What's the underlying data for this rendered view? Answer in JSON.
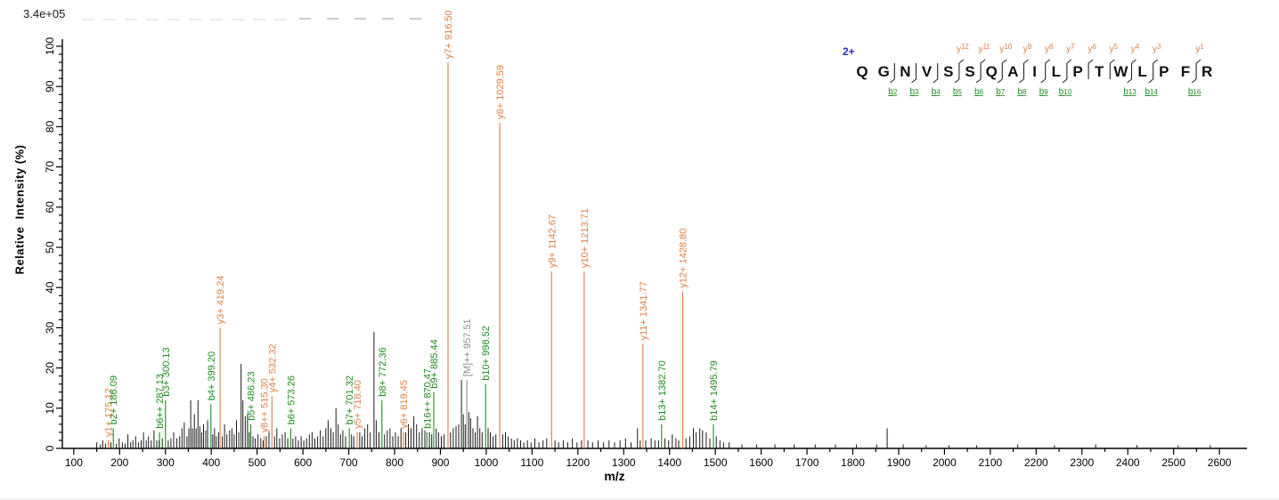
{
  "scale_label": "3.4e+05",
  "axes": {
    "y_title": "Relative  Intensity (%)",
    "x_title": "m/z",
    "x_tick_start": 100,
    "x_tick_end": 2600,
    "x_tick_major_step": 100,
    "x_tick_minor_step": 50,
    "y_tick_major_step": 10,
    "y_tick_minor_step": 2,
    "y_max": 100
  },
  "colors": {
    "y_ion": "#DD8045",
    "b_ion": "#1F8B1F",
    "precursor": "#8C8C8C",
    "noise": "#1a1a1a",
    "axis": "#000000",
    "charge_blue": "#2929C8",
    "artifact_dash": "#c6cbd4",
    "artifact_faint": "#e9eaf0"
  },
  "precursor_charge_label": "2+",
  "peptide": {
    "sequence": [
      "Q",
      "G",
      "N",
      "V",
      "S",
      "S",
      "Q",
      "A",
      "I",
      "L",
      "P",
      "T",
      "W",
      "L",
      "P",
      "F",
      "R"
    ],
    "separator_gaps": [
      2,
      3,
      4,
      5,
      6,
      7,
      8,
      9,
      10,
      11,
      12,
      13,
      14,
      16
    ],
    "y_ions": [
      {
        "gap": 5,
        "name": "y",
        "num": "12"
      },
      {
        "gap": 6,
        "name": "y",
        "num": "11"
      },
      {
        "gap": 7,
        "name": "y",
        "num": "10"
      },
      {
        "gap": 8,
        "name": "y",
        "num": "9"
      },
      {
        "gap": 9,
        "name": "y",
        "num": "8"
      },
      {
        "gap": 10,
        "name": "y",
        "num": "7"
      },
      {
        "gap": 11,
        "name": "y",
        "num": "6"
      },
      {
        "gap": 12,
        "name": "y",
        "num": "5"
      },
      {
        "gap": 13,
        "name": "y",
        "num": "4"
      },
      {
        "gap": 14,
        "name": "y",
        "num": "3"
      },
      {
        "gap": 16,
        "name": "y",
        "num": "1"
      }
    ],
    "b_ions": [
      {
        "gap": 2,
        "name": "b",
        "num": "2"
      },
      {
        "gap": 3,
        "name": "b",
        "num": "3"
      },
      {
        "gap": 4,
        "name": "b",
        "num": "4"
      },
      {
        "gap": 5,
        "name": "b",
        "num": "5"
      },
      {
        "gap": 6,
        "name": "b",
        "num": "6"
      },
      {
        "gap": 7,
        "name": "b",
        "num": "7"
      },
      {
        "gap": 8,
        "name": "b",
        "num": "8"
      },
      {
        "gap": 9,
        "name": "b",
        "num": "9"
      },
      {
        "gap": 10,
        "name": "b",
        "num": "10"
      },
      {
        "gap": 13,
        "name": "b",
        "num": "13"
      },
      {
        "gap": 14,
        "name": "b",
        "num": "14"
      },
      {
        "gap": 16,
        "name": "b",
        "num": "16"
      }
    ]
  },
  "chart_data": {
    "type": "bar",
    "subtype": "mass-spectrum",
    "title": "",
    "xlabel": "m/z",
    "ylabel": "Relative  Intensity (%)",
    "xlim": [
      75,
      2660
    ],
    "ylim": [
      0,
      100
    ],
    "absolute_intensity_scale": "3.4e+05",
    "labeled_peaks": [
      {
        "mz": 175.12,
        "intensity": 2,
        "label": "y1+ 175.12",
        "series": "y"
      },
      {
        "mz": 186.09,
        "intensity": 5,
        "label": "b2+ 186.09",
        "series": "b"
      },
      {
        "mz": 287.13,
        "intensity": 4,
        "label": "b6++ 287.13",
        "series": "b"
      },
      {
        "mz": 300.13,
        "intensity": 12,
        "label": "b3+ 300.13",
        "series": "b"
      },
      {
        "mz": 399.2,
        "intensity": 11,
        "label": "b4+ 399.20",
        "series": "b"
      },
      {
        "mz": 419.24,
        "intensity": 30,
        "label": "y3+ 419.24",
        "series": "y"
      },
      {
        "mz": 486.23,
        "intensity": 6,
        "label": "b5+ 486.23",
        "series": "b"
      },
      {
        "mz": 515.3,
        "intensity": 3,
        "label": "y8++ 515.30",
        "series": "y"
      },
      {
        "mz": 532.32,
        "intensity": 13,
        "label": "y4+ 532.32",
        "series": "y"
      },
      {
        "mz": 573.26,
        "intensity": 5,
        "label": "b6+ 573.26",
        "series": "b"
      },
      {
        "mz": 701.32,
        "intensity": 5,
        "label": "b7+ 701.32",
        "series": "b"
      },
      {
        "mz": 718.4,
        "intensity": 4,
        "label": "y5+ 718.40",
        "series": "y"
      },
      {
        "mz": 772.36,
        "intensity": 12,
        "label": "b8+ 772.36",
        "series": "b"
      },
      {
        "mz": 819.45,
        "intensity": 4,
        "label": "y6+ 819.45",
        "series": "y"
      },
      {
        "mz": 870.47,
        "intensity": 4,
        "label": "b16++ 870.47",
        "series": "b"
      },
      {
        "mz": 885.44,
        "intensity": 14,
        "label": "b9+ 885.44",
        "series": "b"
      },
      {
        "mz": 916.5,
        "intensity": 96,
        "label": "y7+ 916.50",
        "series": "y"
      },
      {
        "mz": 957.51,
        "intensity": 17,
        "label": "[M]++ 957.51",
        "series": "precursor"
      },
      {
        "mz": 998.52,
        "intensity": 16,
        "label": "b10+ 998.52",
        "series": "b"
      },
      {
        "mz": 1029.59,
        "intensity": 81,
        "label": "y8+ 1029.59",
        "series": "y"
      },
      {
        "mz": 1142.67,
        "intensity": 44,
        "label": "y9+ 1142.67",
        "series": "y"
      },
      {
        "mz": 1213.71,
        "intensity": 44,
        "label": "y10+ 1213.71",
        "series": "y"
      },
      {
        "mz": 1341.77,
        "intensity": 26,
        "label": "y11+ 1341.77",
        "series": "y"
      },
      {
        "mz": 1382.7,
        "intensity": 6,
        "label": "b13+ 1382.70",
        "series": "b"
      },
      {
        "mz": 1428.8,
        "intensity": 39,
        "label": "y12+ 1428.80",
        "series": "y"
      },
      {
        "mz": 1495.79,
        "intensity": 6,
        "label": "b14+ 1495.79",
        "series": "b"
      }
    ],
    "noise_peaks": [
      [
        150,
        1.5
      ],
      [
        158,
        1
      ],
      [
        163,
        2
      ],
      [
        169,
        1.2
      ],
      [
        181,
        1.5
      ],
      [
        193,
        1.2
      ],
      [
        199,
        2.5
      ],
      [
        206,
        1.5
      ],
      [
        212,
        1.2
      ],
      [
        218,
        3.5
      ],
      [
        224,
        1.5
      ],
      [
        229,
        2
      ],
      [
        235,
        3
      ],
      [
        241,
        1.5
      ],
      [
        247,
        2
      ],
      [
        252,
        4
      ],
      [
        258,
        2
      ],
      [
        263,
        3
      ],
      [
        269,
        2
      ],
      [
        275,
        4.5
      ],
      [
        281,
        2
      ],
      [
        286,
        2
      ],
      [
        293,
        2.5
      ],
      [
        306,
        2
      ],
      [
        312,
        2.5
      ],
      [
        318,
        4
      ],
      [
        325,
        2.5
      ],
      [
        331,
        3
      ],
      [
        336,
        5
      ],
      [
        341,
        6.5
      ],
      [
        347,
        3
      ],
      [
        351,
        5
      ],
      [
        355,
        12
      ],
      [
        359,
        5
      ],
      [
        363,
        8.5
      ],
      [
        367,
        5
      ],
      [
        371,
        12
      ],
      [
        375,
        5.5
      ],
      [
        379,
        4
      ],
      [
        383,
        6
      ],
      [
        388,
        4.5
      ],
      [
        392,
        7
      ],
      [
        403,
        3.5
      ],
      [
        407,
        5
      ],
      [
        411,
        3
      ],
      [
        416,
        4
      ],
      [
        424,
        3
      ],
      [
        429,
        6
      ],
      [
        434,
        3.5
      ],
      [
        440,
        4.5
      ],
      [
        445,
        5
      ],
      [
        450,
        3.5
      ],
      [
        455,
        7
      ],
      [
        460,
        4
      ],
      [
        465,
        21
      ],
      [
        469,
        12
      ],
      [
        474,
        8
      ],
      [
        479,
        8.5
      ],
      [
        483,
        4
      ],
      [
        491,
        3
      ],
      [
        496,
        2.5
      ],
      [
        502,
        3.5
      ],
      [
        508,
        2.5
      ],
      [
        513,
        2
      ],
      [
        520,
        3
      ],
      [
        526,
        4
      ],
      [
        538,
        3
      ],
      [
        543,
        5
      ],
      [
        549,
        2.5
      ],
      [
        555,
        3.5
      ],
      [
        561,
        4
      ],
      [
        567,
        2.5
      ],
      [
        578,
        2.5
      ],
      [
        584,
        3
      ],
      [
        590,
        2
      ],
      [
        596,
        3
      ],
      [
        602,
        2
      ],
      [
        608,
        2.5
      ],
      [
        614,
        3.5
      ],
      [
        620,
        4
      ],
      [
        626,
        2.5
      ],
      [
        632,
        3
      ],
      [
        638,
        4.5
      ],
      [
        644,
        3
      ],
      [
        650,
        5
      ],
      [
        655,
        7
      ],
      [
        661,
        5
      ],
      [
        666,
        4
      ],
      [
        672,
        10
      ],
      [
        677,
        6
      ],
      [
        682,
        3.5
      ],
      [
        687,
        4.5
      ],
      [
        693,
        3
      ],
      [
        706,
        3.5
      ],
      [
        711,
        3
      ],
      [
        724,
        4
      ],
      [
        729,
        3
      ],
      [
        735,
        5
      ],
      [
        741,
        6
      ],
      [
        747,
        4
      ],
      [
        755,
        29
      ],
      [
        760,
        7
      ],
      [
        766,
        4
      ],
      [
        778,
        3.5
      ],
      [
        784,
        4.5
      ],
      [
        790,
        5
      ],
      [
        796,
        3
      ],
      [
        802,
        4
      ],
      [
        808,
        3
      ],
      [
        814,
        5
      ],
      [
        824,
        4
      ],
      [
        830,
        6
      ],
      [
        836,
        5
      ],
      [
        842,
        8
      ],
      [
        848,
        6
      ],
      [
        854,
        4
      ],
      [
        860,
        5
      ],
      [
        866,
        4.5
      ],
      [
        876,
        4
      ],
      [
        881,
        3.5
      ],
      [
        891,
        5
      ],
      [
        896,
        4
      ],
      [
        902,
        3
      ],
      [
        908,
        3.5
      ],
      [
        922,
        4
      ],
      [
        928,
        5
      ],
      [
        934,
        5.5
      ],
      [
        940,
        6
      ],
      [
        946,
        17
      ],
      [
        950,
        8.5
      ],
      [
        954,
        6
      ],
      [
        962,
        9
      ],
      [
        966,
        7.5
      ],
      [
        971,
        5
      ],
      [
        976,
        4
      ],
      [
        981,
        8
      ],
      [
        986,
        5
      ],
      [
        991,
        4
      ],
      [
        1004,
        5
      ],
      [
        1009,
        4
      ],
      [
        1015,
        3
      ],
      [
        1021,
        3.5
      ],
      [
        1036,
        3.5
      ],
      [
        1042,
        4
      ],
      [
        1048,
        3
      ],
      [
        1055,
        2.5
      ],
      [
        1061,
        2
      ],
      [
        1068,
        2.5
      ],
      [
        1075,
        2
      ],
      [
        1082,
        1.5
      ],
      [
        1090,
        2
      ],
      [
        1098,
        1.5
      ],
      [
        1106,
        2.5
      ],
      [
        1115,
        1.5
      ],
      [
        1124,
        2
      ],
      [
        1132,
        2.5
      ],
      [
        1150,
        2
      ],
      [
        1158,
        1.5
      ],
      [
        1168,
        2
      ],
      [
        1178,
        1.5
      ],
      [
        1188,
        2.5
      ],
      [
        1198,
        1.5
      ],
      [
        1208,
        2
      ],
      [
        1222,
        2
      ],
      [
        1232,
        1.5
      ],
      [
        1244,
        2
      ],
      [
        1256,
        1.5
      ],
      [
        1268,
        2
      ],
      [
        1280,
        1.5
      ],
      [
        1292,
        2
      ],
      [
        1304,
        2.5
      ],
      [
        1316,
        1.5
      ],
      [
        1330,
        5
      ],
      [
        1336,
        2
      ],
      [
        1348,
        2
      ],
      [
        1360,
        2.5
      ],
      [
        1368,
        2
      ],
      [
        1376,
        2
      ],
      [
        1390,
        2.5
      ],
      [
        1398,
        2
      ],
      [
        1406,
        3.5
      ],
      [
        1414,
        2.5
      ],
      [
        1420,
        2
      ],
      [
        1436,
        2.5
      ],
      [
        1444,
        3
      ],
      [
        1452,
        5
      ],
      [
        1458,
        4
      ],
      [
        1466,
        5
      ],
      [
        1472,
        4.5
      ],
      [
        1480,
        4
      ],
      [
        1488,
        2.5
      ],
      [
        1502,
        3
      ],
      [
        1510,
        2
      ],
      [
        1518,
        1.5
      ],
      [
        1530,
        1.5
      ],
      [
        1558,
        1
      ],
      [
        1590,
        1
      ],
      [
        1630,
        1
      ],
      [
        1672,
        1
      ],
      [
        1718,
        1
      ],
      [
        1762,
        1
      ],
      [
        1808,
        1
      ],
      [
        1852,
        1
      ],
      [
        1875,
        5
      ],
      [
        1910,
        1
      ],
      [
        1960,
        0.8
      ],
      [
        2010,
        0.8
      ],
      [
        2070,
        0.8
      ],
      [
        2160,
        1
      ],
      [
        2240,
        0.8
      ],
      [
        2330,
        1
      ],
      [
        2420,
        0.8
      ],
      [
        2510,
        0.8
      ],
      [
        2580,
        0.8
      ]
    ]
  }
}
